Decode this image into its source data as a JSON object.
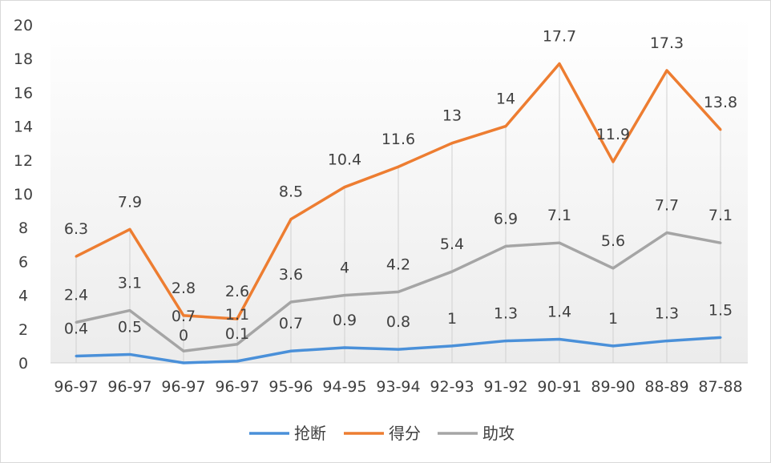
{
  "chart_data": {
    "type": "line",
    "title": "",
    "xlabel": "",
    "ylabel": "",
    "ylim": [
      0,
      20
    ],
    "yticks": [
      0,
      2,
      4,
      6,
      8,
      10,
      12,
      14,
      16,
      18,
      20
    ],
    "grid": "vertical drop lines",
    "legend": "bottom",
    "categories": [
      "96-97",
      "96-97",
      "96-97",
      "96-97",
      "95-96",
      "94-95",
      "93-94",
      "92-93",
      "91-92",
      "90-91",
      "89-90",
      "88-89",
      "87-88"
    ],
    "series": [
      {
        "name": "抢断",
        "color": "#4a90d9",
        "values": [
          0.4,
          0.5,
          0,
          0.1,
          0.7,
          0.9,
          0.8,
          1,
          1.3,
          1.4,
          1,
          1.3,
          1.5
        ]
      },
      {
        "name": "得分",
        "color": "#ed7d31",
        "values": [
          6.3,
          7.9,
          2.8,
          2.6,
          8.5,
          10.4,
          11.6,
          13,
          14,
          17.7,
          11.9,
          17.3,
          13.8
        ]
      },
      {
        "name": "助攻",
        "color": "#a5a5a5",
        "values": [
          2.4,
          3.1,
          0.7,
          1.1,
          3.6,
          4,
          4.2,
          5.4,
          6.9,
          7.1,
          5.6,
          7.7,
          7.1
        ]
      }
    ]
  }
}
